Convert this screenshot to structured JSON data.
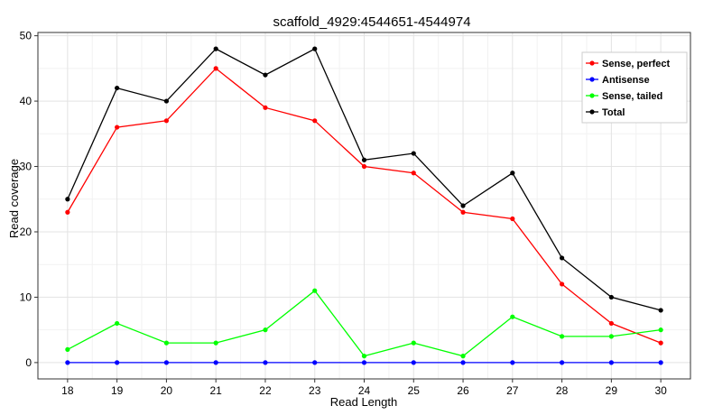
{
  "chart_data": {
    "type": "line",
    "title": "scaffold_4929:4544651-4544974",
    "xlabel": "Read Length",
    "ylabel": "Read coverage",
    "x": [
      18,
      19,
      20,
      21,
      22,
      23,
      24,
      25,
      26,
      27,
      28,
      29,
      30
    ],
    "xlim": [
      17.4,
      30.6
    ],
    "ylim": [
      -2.5,
      50.5
    ],
    "yticks": [
      0,
      10,
      20,
      30,
      40,
      50
    ],
    "grid": true,
    "legend_position": "top-right",
    "series": [
      {
        "name": "Sense, perfect",
        "color": "#ff0000",
        "values": [
          23,
          36,
          37,
          45,
          39,
          37,
          30,
          29,
          23,
          22,
          12,
          6,
          3
        ]
      },
      {
        "name": "Antisense",
        "color": "#0000ff",
        "values": [
          0,
          0,
          0,
          0,
          0,
          0,
          0,
          0,
          0,
          0,
          0,
          0,
          0
        ]
      },
      {
        "name": "Sense, tailed",
        "color": "#00ff00",
        "values": [
          2,
          6,
          3,
          3,
          5,
          11,
          1,
          3,
          1,
          7,
          4,
          4,
          5
        ]
      },
      {
        "name": "Total",
        "color": "#000000",
        "values": [
          25,
          42,
          40,
          48,
          44,
          48,
          31,
          32,
          24,
          29,
          16,
          10,
          8
        ]
      }
    ]
  }
}
